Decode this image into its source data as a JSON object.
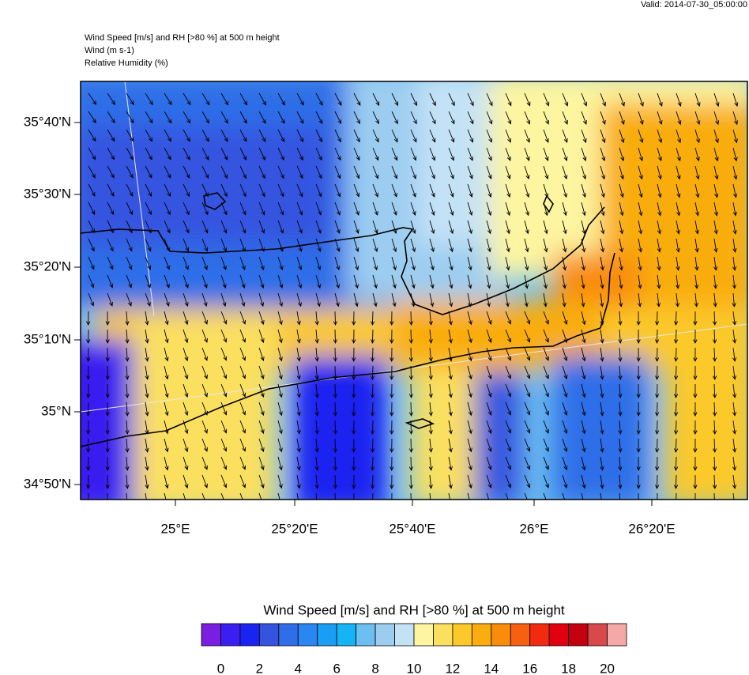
{
  "header": {
    "valid": "Valid: 2014-07-30_05:00:00",
    "lines": [
      "Wind Speed [m/s] and RH [>80 %] at 500 m height",
      "Wind   (m s-1)",
      "Relative Humidity   (%)"
    ]
  },
  "map": {
    "lat_labels": [
      "35°40'N",
      "35°30'N",
      "35°20'N",
      "35°10'N",
      "35°N",
      "34°50'N"
    ],
    "lon_labels": [
      "25°E",
      "25°20'E",
      "25°40'E",
      "26°E",
      "26°20'E"
    ]
  },
  "colorbar": {
    "title": "Wind Speed [m/s] and RH [>80 %] at 500 m height",
    "colors": [
      "#7a1fe0",
      "#3a1ff0",
      "#1a24f0",
      "#3454e0",
      "#2f6ee8",
      "#2a86f0",
      "#1a9ef5",
      "#14b4f5",
      "#6cbff0",
      "#9ccdf0",
      "#c4e2f6",
      "#fdf5a0",
      "#fbe060",
      "#fbc92a",
      "#f9ad10",
      "#f98c0a",
      "#f76010",
      "#f22a10",
      "#e10010",
      "#c30010",
      "#d84a4a",
      "#f5a8a8"
    ],
    "ticks": [
      0,
      2,
      4,
      6,
      8,
      10,
      12,
      14,
      16,
      18,
      20
    ]
  }
}
